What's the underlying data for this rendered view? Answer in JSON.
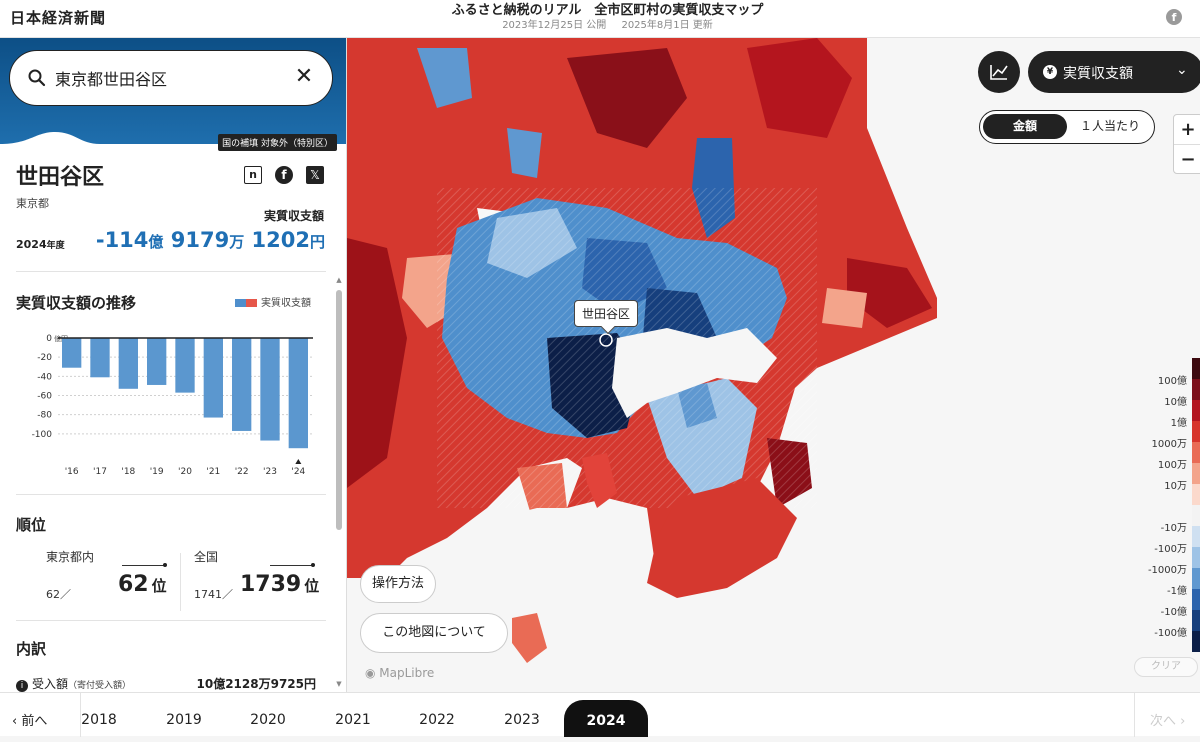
{
  "header": {
    "logo": "日本経済新聞",
    "title": "ふるさと納税のリアル　全市区町村の実質収支マップ",
    "published": "2023年12月25日 公開",
    "updated": "2025年8月1日 更新"
  },
  "search": {
    "value": "東京都世田谷区",
    "clear": "✕"
  },
  "badge": "国の補填 対象外（特別区）",
  "municipality": {
    "name": "世田谷区",
    "prefecture": "東京都",
    "metric_label": "実質収支額",
    "fiscal_year": "2024",
    "fiscal_year_suffix": "年度",
    "value_parts": [
      "-114",
      "億",
      "9179",
      "万",
      "1202",
      "円"
    ]
  },
  "trend": {
    "title": "実質収支額の推移",
    "legend": "実質収支額"
  },
  "chart_data": {
    "type": "bar",
    "categories": [
      "'16",
      "'17",
      "'18",
      "'19",
      "'20",
      "'21",
      "'22",
      "'23",
      "'24"
    ],
    "values": [
      -31,
      -41,
      -53,
      -49,
      -57,
      -83,
      -97,
      -107,
      -115
    ],
    "ylim": [
      -120,
      0
    ],
    "yticks": [
      0,
      -20,
      -40,
      -60,
      -80,
      -100
    ],
    "unit": "億円",
    "highlight": "'24"
  },
  "ranking": {
    "title": "順位",
    "tokyo": {
      "label": "東京都内",
      "prefix": "62／",
      "rank": "62",
      "suffix": "位"
    },
    "national": {
      "label": "全国",
      "prefix": "1741／",
      "rank": "1739",
      "suffix": "位"
    }
  },
  "breakdown": {
    "title": "内訳",
    "row": {
      "label": "受入額",
      "sub": "（寄付受入額）",
      "value": "10億2128万9725円"
    }
  },
  "map": {
    "tooltip": "世田谷区",
    "how_to": "操作方法",
    "about": "この地図について",
    "attribution": "MapLibre",
    "metric": "実質収支額",
    "toggle_amount": "金額",
    "toggle_per_capita": "１人当たり",
    "zoom_in": "+",
    "zoom_out": "−",
    "clear": "クリア",
    "scale_labels": [
      "100億",
      "10億",
      "1億",
      "1000万",
      "100万",
      "10万",
      "-10万",
      "-100万",
      "-1000万",
      "-1億",
      "-10億",
      "-100億"
    ],
    "scale_colors": [
      "#3d0a10",
      "#7c0f1a",
      "#b3141f",
      "#d7342b",
      "#e96b55",
      "#f3a48b",
      "#fbd9cc",
      "#f3f3f3",
      "#cfe0f1",
      "#9ec3e6",
      "#5f98d0",
      "#2c64ad",
      "#163f7d",
      "#0c1f48"
    ]
  },
  "timeline": {
    "prev": "前へ",
    "next": "次へ",
    "years": [
      "2018",
      "2019",
      "2020",
      "2021",
      "2022",
      "2023",
      "2024"
    ],
    "active": "2024"
  }
}
